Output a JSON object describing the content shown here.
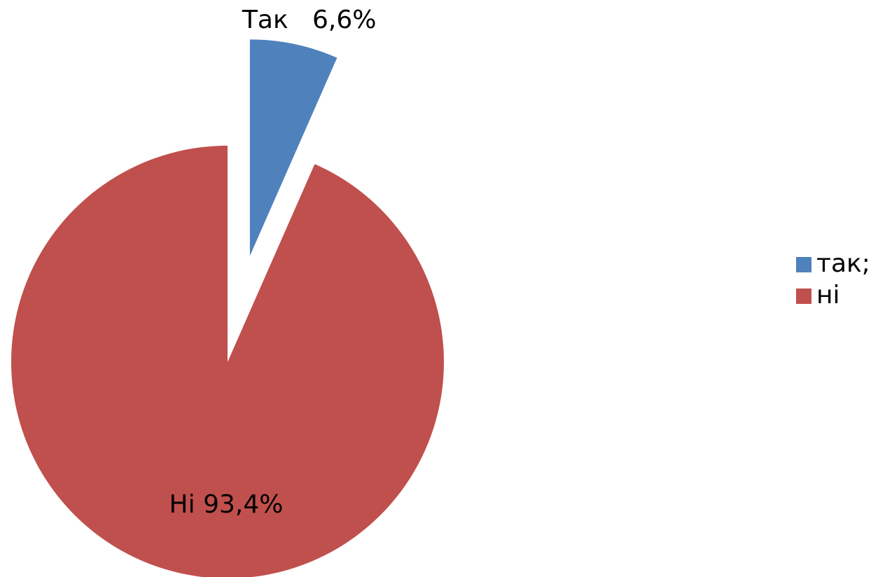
{
  "chart_data": {
    "type": "pie",
    "categories": [
      "так;",
      "ні"
    ],
    "values": [
      6.6,
      93.4
    ],
    "value_labels": [
      "Так   6,6%",
      "Ні 93,4%"
    ],
    "colors": [
      "#4f81bd",
      "#c0504d"
    ],
    "legend": "right"
  }
}
